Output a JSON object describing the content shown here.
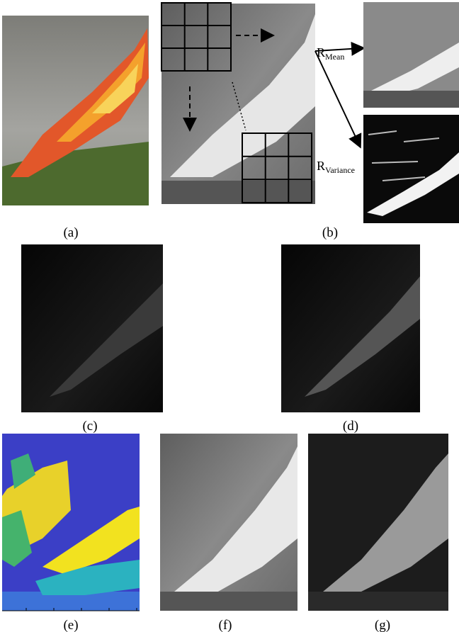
{
  "panel_labels": [
    "(a)",
    "(b)",
    "(c)",
    "(d)",
    "(e)",
    "(f)",
    "(g)"
  ],
  "annotations": [
    {
      "symbol": "R",
      "subscript": "Mean"
    },
    {
      "symbol": "R",
      "subscript": "Variance"
    }
  ]
}
